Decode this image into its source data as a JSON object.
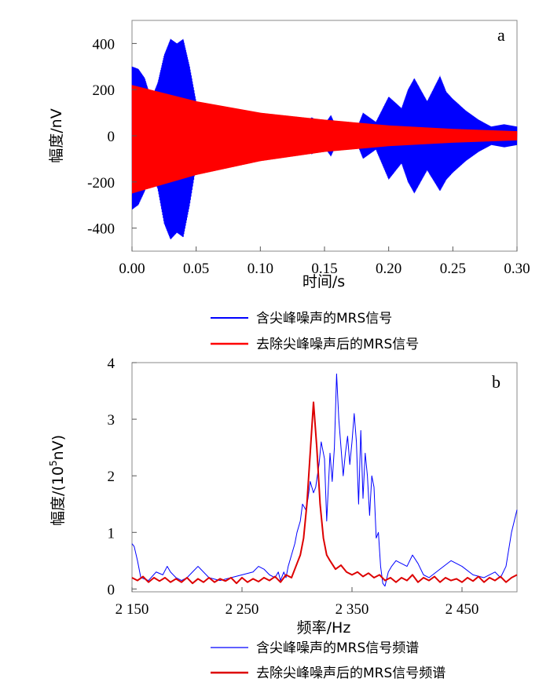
{
  "chart_data": [
    {
      "type": "line",
      "panel_label": "a",
      "xlabel": "时间/s",
      "ylabel": "幅度/nV",
      "xlim": [
        0.0,
        0.3
      ],
      "ylim": [
        -500,
        500
      ],
      "xticks": [
        "0.00",
        "0.05",
        "0.10",
        "0.15",
        "0.20",
        "0.25",
        "0.30"
      ],
      "xtick_values": [
        0.0,
        0.05,
        0.1,
        0.15,
        0.2,
        0.25,
        0.3
      ],
      "yticks": [
        "400",
        "200",
        "0",
        "-200",
        "-400"
      ],
      "ytick_values": [
        400,
        200,
        0,
        -200,
        -400
      ],
      "grid": false,
      "legend_position": "below",
      "series": [
        {
          "name": "含尖峰噪声的MRS信号",
          "color": "#0000ff",
          "description": "oscillating signal envelope (upper/lower amplitude in nV)",
          "envelope_time": [
            0.0,
            0.005,
            0.01,
            0.015,
            0.02,
            0.025,
            0.03,
            0.035,
            0.04,
            0.045,
            0.05,
            0.06,
            0.07,
            0.075,
            0.08,
            0.09,
            0.1,
            0.11,
            0.12,
            0.13,
            0.14,
            0.15,
            0.155,
            0.16,
            0.17,
            0.175,
            0.18,
            0.19,
            0.2,
            0.21,
            0.215,
            0.22,
            0.23,
            0.24,
            0.245,
            0.25,
            0.26,
            0.27,
            0.28,
            0.29,
            0.3
          ],
          "upper": [
            300,
            290,
            250,
            160,
            230,
            350,
            420,
            400,
            420,
            300,
            150,
            100,
            60,
            80,
            60,
            50,
            45,
            80,
            60,
            40,
            80,
            50,
            90,
            30,
            30,
            30,
            100,
            60,
            170,
            120,
            200,
            250,
            150,
            260,
            190,
            160,
            110,
            70,
            40,
            50,
            40
          ],
          "lower": [
            -320,
            -300,
            -240,
            -160,
            -230,
            -380,
            -450,
            -420,
            -440,
            -300,
            -130,
            -100,
            -60,
            -80,
            -60,
            -50,
            -45,
            -80,
            -60,
            -40,
            -80,
            -50,
            -90,
            -30,
            -30,
            -30,
            -100,
            -60,
            -190,
            -120,
            -200,
            -250,
            -150,
            -240,
            -190,
            -160,
            -110,
            -70,
            -40,
            -50,
            -40
          ]
        },
        {
          "name": "去除尖峰噪声后的MRS信号",
          "color": "#ff0000",
          "description": "decaying oscillation envelope (upper/lower amplitude in nV)",
          "envelope_time": [
            0.0,
            0.05,
            0.1,
            0.15,
            0.2,
            0.25,
            0.3
          ],
          "upper": [
            220,
            150,
            100,
            70,
            45,
            30,
            20
          ],
          "lower": [
            -250,
            -170,
            -110,
            -70,
            -45,
            -30,
            -20
          ]
        }
      ]
    },
    {
      "type": "line",
      "panel_label": "b",
      "xlabel": "频率/Hz",
      "ylabel_main": "幅度/(10",
      "ylabel_sup": "5",
      "ylabel_tail": "nV)",
      "xlim": [
        2150,
        2500
      ],
      "ylim": [
        -0.05,
        4
      ],
      "xticks": [
        "2 150",
        "2 250",
        "2 350",
        "2 450"
      ],
      "xtick_values": [
        2150,
        2250,
        2350,
        2450
      ],
      "yticks": [
        "4",
        "3",
        "2",
        "1",
        "0"
      ],
      "ytick_values": [
        4,
        3,
        2,
        1,
        0
      ],
      "grid": false,
      "legend_position": "below",
      "series": [
        {
          "name": "含尖峰噪声的MRS信号频谱",
          "color": "#0000ff",
          "x": [
            2150,
            2152,
            2155,
            2158,
            2165,
            2172,
            2178,
            2182,
            2185,
            2190,
            2195,
            2200,
            2205,
            2210,
            2220,
            2230,
            2240,
            2250,
            2260,
            2265,
            2270,
            2275,
            2280,
            2283,
            2285,
            2288,
            2290,
            2292,
            2295,
            2298,
            2300,
            2303,
            2305,
            2308,
            2310,
            2312,
            2315,
            2317,
            2320,
            2322,
            2325,
            2327,
            2330,
            2332,
            2334,
            2336,
            2338,
            2340,
            2342,
            2344,
            2346,
            2348,
            2350,
            2352,
            2354,
            2356,
            2358,
            2360,
            2362,
            2364,
            2366,
            2368,
            2370,
            2372,
            2374,
            2376,
            2378,
            2380,
            2383,
            2386,
            2390,
            2395,
            2400,
            2405,
            2410,
            2415,
            2420,
            2430,
            2440,
            2450,
            2460,
            2470,
            2480,
            2485,
            2490,
            2495,
            2500
          ],
          "y": [
            0.8,
            0.75,
            0.5,
            0.2,
            0.15,
            0.3,
            0.25,
            0.4,
            0.3,
            0.2,
            0.15,
            0.2,
            0.3,
            0.4,
            0.2,
            0.15,
            0.2,
            0.25,
            0.3,
            0.4,
            0.35,
            0.25,
            0.2,
            0.3,
            0.15,
            0.3,
            0.2,
            0.4,
            0.6,
            0.8,
            1.0,
            1.2,
            1.5,
            1.4,
            1.6,
            1.9,
            1.7,
            1.8,
            2.2,
            2.6,
            2.3,
            1.2,
            2.4,
            1.9,
            2.5,
            3.8,
            3.0,
            2.5,
            2.0,
            2.4,
            2.7,
            2.2,
            2.6,
            3.1,
            2.6,
            1.5,
            2.8,
            1.6,
            2.4,
            2.0,
            1.3,
            2.0,
            1.8,
            0.9,
            1.0,
            0.4,
            0.1,
            0.05,
            0.3,
            0.4,
            0.5,
            0.45,
            0.4,
            0.6,
            0.45,
            0.25,
            0.2,
            0.35,
            0.5,
            0.4,
            0.25,
            0.2,
            0.3,
            0.2,
            0.4,
            1.0,
            1.4
          ]
        },
        {
          "name": "去除尖峰噪声后的MRS信号频谱",
          "color": "#dd0000",
          "x": [
            2150,
            2155,
            2160,
            2165,
            2170,
            2175,
            2180,
            2185,
            2190,
            2195,
            2200,
            2205,
            2210,
            2215,
            2220,
            2225,
            2230,
            2235,
            2240,
            2245,
            2250,
            2255,
            2260,
            2265,
            2270,
            2275,
            2280,
            2285,
            2290,
            2295,
            2300,
            2303,
            2306,
            2309,
            2312,
            2315,
            2318,
            2321,
            2324,
            2327,
            2330,
            2335,
            2340,
            2345,
            2350,
            2355,
            2360,
            2365,
            2370,
            2375,
            2380,
            2385,
            2390,
            2395,
            2400,
            2405,
            2410,
            2415,
            2420,
            2425,
            2430,
            2435,
            2440,
            2445,
            2450,
            2455,
            2460,
            2465,
            2470,
            2475,
            2480,
            2485,
            2490,
            2495,
            2500
          ],
          "y": [
            0.2,
            0.15,
            0.22,
            0.12,
            0.2,
            0.14,
            0.2,
            0.12,
            0.18,
            0.12,
            0.2,
            0.1,
            0.18,
            0.12,
            0.2,
            0.12,
            0.18,
            0.14,
            0.2,
            0.1,
            0.2,
            0.12,
            0.18,
            0.13,
            0.2,
            0.15,
            0.22,
            0.12,
            0.25,
            0.2,
            0.45,
            0.6,
            0.9,
            1.5,
            2.4,
            3.3,
            2.5,
            1.5,
            0.9,
            0.6,
            0.5,
            0.35,
            0.42,
            0.3,
            0.25,
            0.3,
            0.22,
            0.28,
            0.2,
            0.25,
            0.15,
            0.2,
            0.12,
            0.2,
            0.15,
            0.25,
            0.12,
            0.2,
            0.15,
            0.22,
            0.12,
            0.2,
            0.15,
            0.18,
            0.12,
            0.2,
            0.14,
            0.22,
            0.12,
            0.2,
            0.15,
            0.22,
            0.12,
            0.2,
            0.25
          ]
        }
      ]
    }
  ]
}
